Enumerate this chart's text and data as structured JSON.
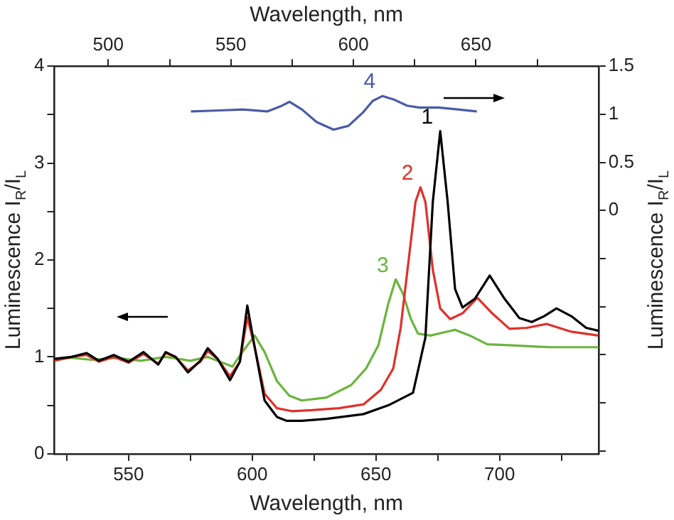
{
  "chart_data": {
    "type": "line",
    "xlabel": "Wavelength, nm",
    "x2label": "Wavelength, nm",
    "ylabel": "Luminescence I$_{R}$/I$_{L}$",
    "y2label": "Luminescence I$_{R}$/I$_{L}$",
    "xlim": [
      520,
      740
    ],
    "xticks": [
      {
        "value": 525,
        "label": null
      },
      550,
      {
        "value": 575,
        "label": null
      },
      600,
      {
        "value": 625,
        "label": null
      },
      650,
      {
        "value": 675,
        "label": null
      },
      700,
      {
        "value": 725,
        "label": null
      }
    ],
    "x2lim": [
      478,
      700
    ],
    "x2ticks": [
      500,
      {
        "value": 525,
        "label": null
      },
      550,
      {
        "value": 575,
        "label": null
      },
      600,
      {
        "value": 625,
        "label": null
      },
      650,
      {
        "value": 675,
        "label": null
      }
    ],
    "ylim": [
      0,
      4
    ],
    "yticks": [
      0,
      {
        "value": 0.5,
        "label": null
      },
      1,
      {
        "value": 1.5,
        "label": null
      },
      2,
      {
        "value": 2.5,
        "label": null
      },
      3,
      {
        "value": 3.5,
        "label": null
      },
      4
    ],
    "y2lim": [
      -2.53,
      1.5
    ],
    "y2ticks": [
      {
        "value": -2.5,
        "label": null
      },
      {
        "value": -2,
        "label": null
      },
      {
        "value": -1.5,
        "label": null
      },
      {
        "value": -1,
        "label": null
      },
      {
        "value": -0.5,
        "label": null
      },
      0,
      0.5,
      1,
      1.5
    ],
    "grid": false,
    "legend": false,
    "marker": "none",
    "line_style": "solid",
    "series": [
      {
        "name": "1",
        "color": "#000000",
        "x": [
          520,
          527,
          533,
          538,
          544,
          550,
          556,
          562,
          565,
          569,
          574,
          579,
          582,
          586,
          591,
          595,
          598,
          601,
          605,
          610,
          614,
          620,
          630,
          645,
          655,
          665,
          670,
          673,
          676,
          679,
          682,
          685,
          690,
          696,
          702,
          708,
          713,
          718,
          723,
          729,
          735,
          740
        ],
        "values": [
          0.98,
          1.0,
          1.04,
          0.96,
          1.02,
          0.95,
          1.05,
          0.92,
          1.05,
          1.0,
          0.84,
          0.96,
          1.09,
          0.98,
          0.76,
          0.95,
          1.53,
          1.1,
          0.55,
          0.38,
          0.34,
          0.34,
          0.36,
          0.41,
          0.5,
          0.63,
          1.2,
          2.6,
          3.33,
          2.6,
          1.7,
          1.51,
          1.6,
          1.84,
          1.6,
          1.4,
          1.36,
          1.42,
          1.5,
          1.42,
          1.3,
          1.27
        ]
      },
      {
        "name": "2",
        "color": "#e0302a",
        "x": [
          520,
          527,
          533,
          538,
          544,
          550,
          556,
          562,
          565,
          569,
          574,
          579,
          582,
          586,
          591,
          595,
          598,
          601,
          605,
          610,
          616,
          624,
          635,
          645,
          652,
          657,
          660,
          663,
          666,
          668,
          670,
          673,
          676,
          680,
          685,
          691,
          697,
          704,
          711,
          719,
          729,
          740
        ],
        "values": [
          0.96,
          1.0,
          1.02,
          0.95,
          1.0,
          0.94,
          1.03,
          0.93,
          1.04,
          1.0,
          0.86,
          0.95,
          1.06,
          0.98,
          0.8,
          0.95,
          1.41,
          1.1,
          0.62,
          0.47,
          0.44,
          0.45,
          0.47,
          0.51,
          0.66,
          0.88,
          1.3,
          1.95,
          2.6,
          2.75,
          2.6,
          1.9,
          1.5,
          1.39,
          1.45,
          1.61,
          1.45,
          1.29,
          1.3,
          1.34,
          1.26,
          1.22
        ]
      },
      {
        "name": "3",
        "color": "#6ab43c",
        "x": [
          520,
          527,
          535,
          545,
          555,
          565,
          575,
          582,
          587,
          592,
          596,
          601,
          605,
          610,
          615,
          620,
          630,
          640,
          646,
          651,
          655,
          658,
          661,
          664,
          667,
          672,
          677,
          682,
          688,
          695,
          705,
          720,
          740
        ],
        "values": [
          0.97,
          0.99,
          0.97,
          0.99,
          0.96,
          1.0,
          0.96,
          1.0,
          0.95,
          0.9,
          1.05,
          1.22,
          1.05,
          0.75,
          0.6,
          0.55,
          0.58,
          0.71,
          0.88,
          1.12,
          1.55,
          1.8,
          1.65,
          1.4,
          1.24,
          1.22,
          1.25,
          1.28,
          1.22,
          1.13,
          1.12,
          1.1,
          1.1
        ]
      },
      {
        "name": "4",
        "color": "#4a5aa8",
        "axis": "y2",
        "x": [
          575.2,
          586.4,
          596.3,
          606.2,
          611.2,
          615.1,
          620.1,
          626,
          632.9,
          638.9,
          644.8,
          648.7,
          652.7,
          657.6,
          662.6,
          667.5,
          675.4,
          683.3,
          690.8
        ],
        "values": [
          1.03,
          1.04,
          1.05,
          1.03,
          1.08,
          1.13,
          1.05,
          0.92,
          0.84,
          0.88,
          1.02,
          1.14,
          1.19,
          1.15,
          1.09,
          1.07,
          1.07,
          1.05,
          1.03
        ]
      }
    ]
  }
}
